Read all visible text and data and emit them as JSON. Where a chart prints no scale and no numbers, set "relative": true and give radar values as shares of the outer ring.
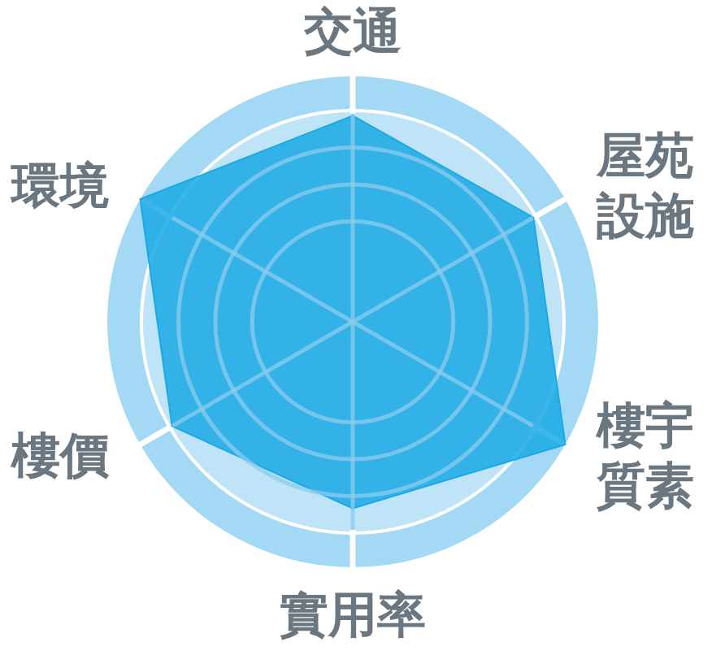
{
  "chart_data": {
    "type": "radar",
    "categories": [
      "交通",
      "屋苑設施",
      "樓宇質素",
      "實用率",
      "樓價",
      "環境"
    ],
    "series": [
      {
        "color": "#1aa9e4",
        "values": [
          0.84,
          0.85,
          1,
          0.76,
          0.85,
          1
        ]
      }
    ],
    "relative": true,
    "grid": true
  }
}
